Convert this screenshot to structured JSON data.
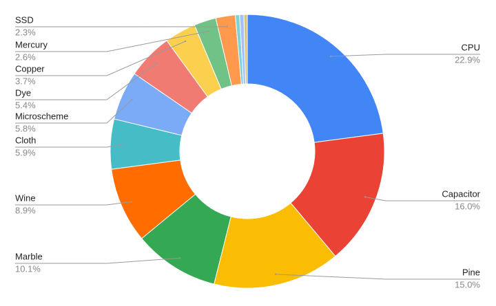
{
  "chart_data": {
    "type": "pie",
    "categories": [
      "CPU",
      "Capacitor",
      "Pine",
      "Marble",
      "Wine",
      "Cloth",
      "Microscheme",
      "Dye",
      "Copper",
      "Mercury",
      "SSD",
      null,
      null,
      null
    ],
    "values": [
      22.9,
      16.0,
      15.0,
      10.1,
      8.9,
      5.9,
      5.8,
      5.4,
      3.7,
      2.6,
      2.3,
      0.5,
      0.5,
      0.4
    ],
    "value_labels": [
      "22.9%",
      "16.0%",
      "15.0%",
      "10.1%",
      "8.9%",
      "5.9%",
      "5.8%",
      "5.4%",
      "3.7%",
      "2.6%",
      "2.3%",
      null,
      null,
      null
    ],
    "colors": [
      "#4285f4",
      "#ea4335",
      "#fbbc04",
      "#34a853",
      "#ff6d01",
      "#46bdc6",
      "#7baaf7",
      "#f07b72",
      "#fcd04f",
      "#71c287",
      "#ff994d",
      "#7ed1d7",
      "#a1c2fa",
      "#d9c27a"
    ],
    "donut": true
  }
}
